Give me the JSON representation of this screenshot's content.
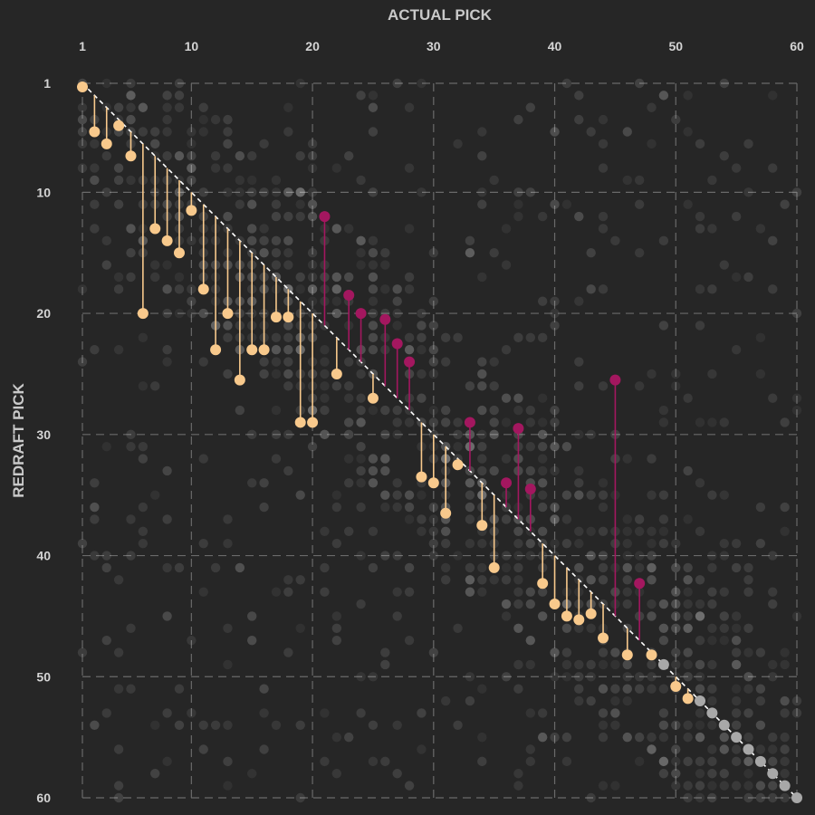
{
  "chart_data": {
    "type": "scatter",
    "xlabel": "ACTUAL PICK",
    "ylabel": "REDRAFT PICK",
    "xlim": [
      1,
      60
    ],
    "ylim": [
      1,
      60
    ],
    "y_inverted": true,
    "x_axis_position": "top",
    "grid": true,
    "x_ticks": [
      1,
      10,
      20,
      30,
      40,
      50,
      60
    ],
    "y_ticks": [
      1,
      10,
      20,
      30,
      40,
      50,
      60
    ],
    "reference_line": "y = x",
    "colors": {
      "background": "#262626",
      "overvalued": "#f8c98c",
      "undervalued": "#a3175f",
      "neutral": "#a8a8a8",
      "background_dots": "#ffffff"
    },
    "series": [
      {
        "category": "redraft-later",
        "points": [
          [
            1,
            1.3
          ],
          [
            2,
            5
          ],
          [
            3,
            6
          ],
          [
            4,
            4.5
          ],
          [
            5,
            7
          ],
          [
            6,
            20
          ],
          [
            7,
            13
          ],
          [
            8,
            14
          ],
          [
            9,
            15
          ],
          [
            10,
            11.5
          ],
          [
            11,
            18
          ],
          [
            12,
            23
          ],
          [
            13,
            20
          ],
          [
            14,
            25.5
          ],
          [
            15,
            23
          ],
          [
            16,
            23
          ],
          [
            17,
            20.3
          ],
          [
            18,
            20.3
          ],
          [
            19,
            29
          ],
          [
            20,
            29
          ],
          [
            22,
            25
          ],
          [
            25,
            27
          ],
          [
            29,
            33.5
          ],
          [
            30,
            34
          ],
          [
            31,
            36.5
          ],
          [
            32,
            32.5
          ],
          [
            34,
            37.5
          ],
          [
            35,
            41
          ],
          [
            39,
            42.3
          ],
          [
            40,
            44
          ],
          [
            41,
            45
          ],
          [
            42,
            45.3
          ],
          [
            43,
            44.8
          ],
          [
            44,
            46.8
          ],
          [
            46,
            48.2
          ],
          [
            48,
            48.2
          ],
          [
            50,
            50.8
          ],
          [
            51,
            51.8
          ]
        ]
      },
      {
        "category": "redraft-earlier",
        "points": [
          [
            21,
            12
          ],
          [
            23,
            18.5
          ],
          [
            24,
            20
          ],
          [
            26,
            20.5
          ],
          [
            27,
            22.5
          ],
          [
            28,
            24
          ],
          [
            33,
            29
          ],
          [
            36,
            34
          ],
          [
            37,
            29.5
          ],
          [
            38,
            34.5
          ],
          [
            45,
            25.5
          ],
          [
            47,
            42.3
          ]
        ]
      },
      {
        "category": "redraft-same",
        "points": [
          [
            49,
            49
          ],
          [
            52,
            52
          ],
          [
            53,
            53
          ],
          [
            54,
            54
          ],
          [
            55,
            55
          ],
          [
            56,
            56
          ],
          [
            57,
            57
          ],
          [
            58,
            58
          ],
          [
            59,
            59
          ],
          [
            60,
            60
          ]
        ]
      }
    ]
  }
}
